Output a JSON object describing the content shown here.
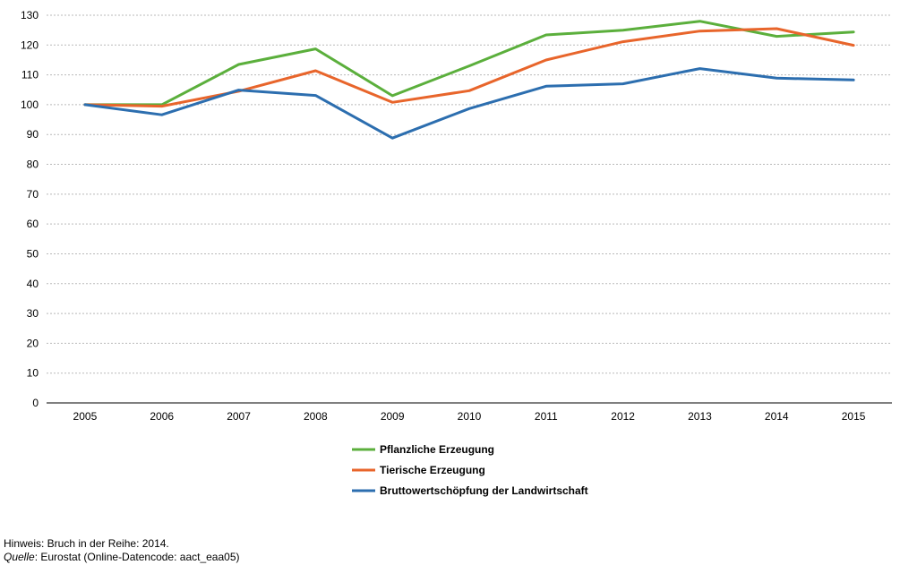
{
  "chart_data": {
    "type": "line",
    "x": [
      "2005",
      "2006",
      "2007",
      "2008",
      "2009",
      "2010",
      "2011",
      "2012",
      "2013",
      "2014",
      "2015"
    ],
    "yticks": [
      "0",
      "10",
      "20",
      "30",
      "40",
      "50",
      "60",
      "70",
      "80",
      "90",
      "100",
      "110",
      "120",
      "130"
    ],
    "ylim": [
      0,
      130
    ],
    "grid": true,
    "legend_position": "bottom-center",
    "series": [
      {
        "name": "Pflanzliche Erzeugung",
        "color": "#5BAF3C",
        "values": [
          100,
          100,
          113.5,
          118.7,
          103,
          113,
          123.4,
          125,
          128,
          122.9,
          124.4
        ]
      },
      {
        "name": "Tierische Erzeugung",
        "color": "#E8652B",
        "values": [
          100,
          99.5,
          104.5,
          111.4,
          100.8,
          104.7,
          115,
          121.1,
          124.7,
          125.5,
          119.9
        ]
      },
      {
        "name": "Bruttowertschöpfung der Landwirtschaft",
        "color": "#2C6EAF",
        "values": [
          100,
          96.6,
          104.9,
          103.1,
          88.8,
          98.7,
          106.2,
          107,
          112.1,
          108.9,
          108.3
        ]
      }
    ]
  },
  "notes": {
    "hint": "Hinweis: Bruch in der Reihe: 2014.",
    "source_label": "Quelle",
    "source_text": ": Eurostat (Online-Datencode: aact_eaa05)"
  }
}
